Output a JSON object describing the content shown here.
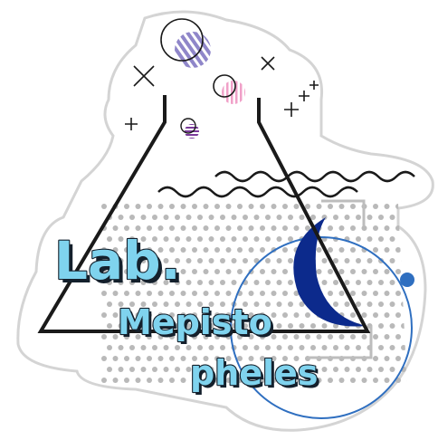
{
  "logo": {
    "line1": "Lab.",
    "line2": "Mepisto",
    "line3": "pheles"
  }
}
